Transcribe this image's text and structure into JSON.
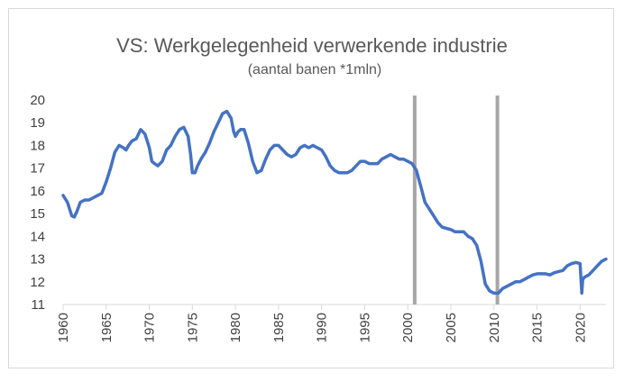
{
  "chart_data": {
    "type": "line",
    "title": "VS: Werkgelegenheid verwerkende industrie",
    "subtitle": "(aantal banen *1mln)",
    "xlabel": "",
    "ylabel": "",
    "xlim": [
      1960,
      2023
    ],
    "ylim": [
      11,
      20
    ],
    "yticks": [
      11,
      12,
      13,
      14,
      15,
      16,
      17,
      18,
      19,
      20
    ],
    "xticks": [
      1960,
      1965,
      1970,
      1975,
      1980,
      1985,
      1990,
      1995,
      2000,
      2005,
      2010,
      2015,
      2020
    ],
    "grid": false,
    "legend": "none",
    "series_color": "#4472c4",
    "marker_color": "#a6a6a6",
    "vertical_markers": [
      2000.8,
      2010.4
    ],
    "series": [
      {
        "x": [
          1960,
          1960.5,
          1961,
          1961.3,
          1961.6,
          1962,
          1962.5,
          1963,
          1963.5,
          1964,
          1964.5,
          1965,
          1965.5,
          1966,
          1966.5,
          1967,
          1967.3,
          1967.6,
          1968,
          1968.5,
          1969,
          1969.5,
          1970,
          1970.3,
          1970.6,
          1971,
          1971.5,
          1972,
          1972.5,
          1973,
          1973.5,
          1974,
          1974.5,
          1974.8,
          1975,
          1975.3,
          1975.6,
          1976,
          1976.5,
          1977,
          1977.5,
          1978,
          1978.5,
          1979,
          1979.5,
          1979.8,
          1980,
          1980.3,
          1980.6,
          1981,
          1981.5,
          1982,
          1982.5,
          1983,
          1983.5,
          1984,
          1984.5,
          1985,
          1985.5,
          1986,
          1986.5,
          1987,
          1987.5,
          1988,
          1988.5,
          1989,
          1989.5,
          1990,
          1990.5,
          1991,
          1991.5,
          1992,
          1992.5,
          1993,
          1993.5,
          1994,
          1994.5,
          1995,
          1995.5,
          1996,
          1996.5,
          1997,
          1997.5,
          1998,
          1998.5,
          1999,
          1999.5,
          2000,
          2000.5,
          2001,
          2001.5,
          2002,
          2002.5,
          2003,
          2003.5,
          2004,
          2004.5,
          2005,
          2005.5,
          2006,
          2006.5,
          2007,
          2007.5,
          2008,
          2008.5,
          2009,
          2009.5,
          2010,
          2010.5,
          2011,
          2011.5,
          2012,
          2012.5,
          2013,
          2013.5,
          2014,
          2014.5,
          2015,
          2015.5,
          2016,
          2016.5,
          2017,
          2017.5,
          2018,
          2018.5,
          2019,
          2019.5,
          2020,
          2020.2,
          2020.3,
          2020.5,
          2021,
          2021.5,
          2022,
          2022.5,
          2023
        ],
        "y": [
          15.8,
          15.5,
          14.9,
          14.85,
          15.1,
          15.5,
          15.6,
          15.6,
          15.7,
          15.8,
          15.9,
          16.4,
          17.0,
          17.7,
          18.0,
          17.9,
          17.8,
          18.0,
          18.2,
          18.3,
          18.7,
          18.5,
          17.9,
          17.3,
          17.2,
          17.1,
          17.3,
          17.8,
          18.0,
          18.4,
          18.7,
          18.8,
          18.4,
          17.6,
          16.8,
          16.8,
          17.1,
          17.4,
          17.7,
          18.1,
          18.6,
          19.0,
          19.4,
          19.5,
          19.2,
          18.6,
          18.4,
          18.6,
          18.7,
          18.7,
          18.1,
          17.3,
          16.8,
          16.9,
          17.4,
          17.8,
          18.0,
          18.0,
          17.8,
          17.6,
          17.5,
          17.6,
          17.9,
          18.0,
          17.9,
          18.0,
          17.9,
          17.8,
          17.5,
          17.1,
          16.9,
          16.8,
          16.8,
          16.8,
          16.9,
          17.1,
          17.3,
          17.3,
          17.2,
          17.2,
          17.2,
          17.4,
          17.5,
          17.6,
          17.5,
          17.4,
          17.4,
          17.3,
          17.2,
          16.9,
          16.2,
          15.5,
          15.2,
          14.9,
          14.6,
          14.4,
          14.35,
          14.3,
          14.2,
          14.2,
          14.2,
          14.0,
          13.9,
          13.6,
          12.9,
          11.9,
          11.6,
          11.5,
          11.5,
          11.7,
          11.8,
          11.9,
          12.0,
          12.0,
          12.1,
          12.2,
          12.3,
          12.35,
          12.35,
          12.35,
          12.3,
          12.4,
          12.45,
          12.5,
          12.7,
          12.8,
          12.85,
          12.8,
          11.5,
          12.1,
          12.2,
          12.3,
          12.5,
          12.7,
          12.9,
          13.0
        ]
      }
    ]
  }
}
